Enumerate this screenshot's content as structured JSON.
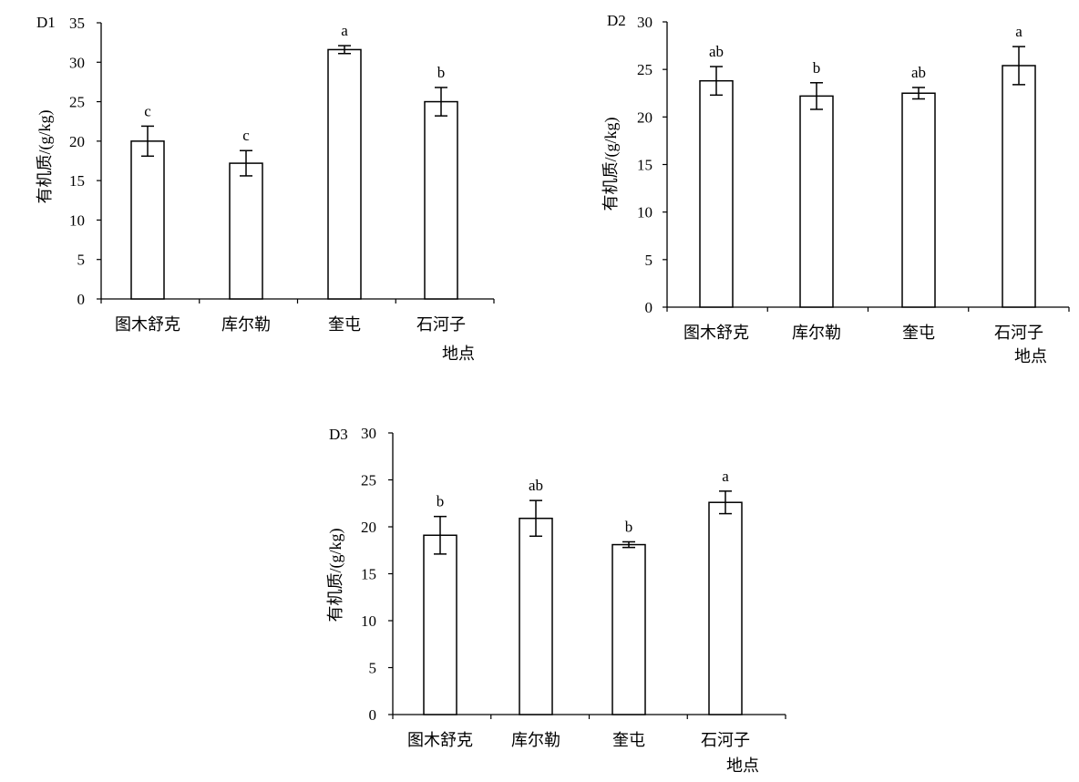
{
  "chart_data": [
    {
      "type": "bar",
      "panel": "D1",
      "ylabel": "有机质/(g/kg)",
      "xlabel": "地点",
      "categories": [
        "图木舒克",
        "库尔勒",
        "奎屯",
        "石河子"
      ],
      "values": [
        20.0,
        17.2,
        31.6,
        25.0
      ],
      "errors": [
        1.9,
        1.6,
        0.5,
        1.8
      ],
      "significance": [
        "c",
        "c",
        "a",
        "b"
      ],
      "ylim": [
        0,
        35
      ],
      "yticks": [
        0,
        5,
        10,
        15,
        20,
        25,
        30,
        35
      ]
    },
    {
      "type": "bar",
      "panel": "D2",
      "ylabel": "有机质/(g/kg)",
      "xlabel": "地点",
      "categories": [
        "图木舒克",
        "库尔勒",
        "奎屯",
        "石河子"
      ],
      "values": [
        23.8,
        22.2,
        22.5,
        25.4
      ],
      "errors": [
        1.5,
        1.4,
        0.6,
        2.0
      ],
      "significance": [
        "ab",
        "b",
        "ab",
        "a"
      ],
      "ylim": [
        0,
        30
      ],
      "yticks": [
        0,
        5,
        10,
        15,
        20,
        25,
        30
      ]
    },
    {
      "type": "bar",
      "panel": "D3",
      "ylabel": "有机质/(g/kg)",
      "xlabel": "地点",
      "categories": [
        "图木舒克",
        "库尔勒",
        "奎屯",
        "石河子"
      ],
      "values": [
        19.1,
        20.9,
        18.1,
        22.6
      ],
      "errors": [
        2.0,
        1.9,
        0.3,
        1.2
      ],
      "significance": [
        "b",
        "ab",
        "b",
        "a"
      ],
      "ylim": [
        0,
        30
      ],
      "yticks": [
        0,
        5,
        10,
        15,
        20,
        25,
        30
      ]
    }
  ]
}
